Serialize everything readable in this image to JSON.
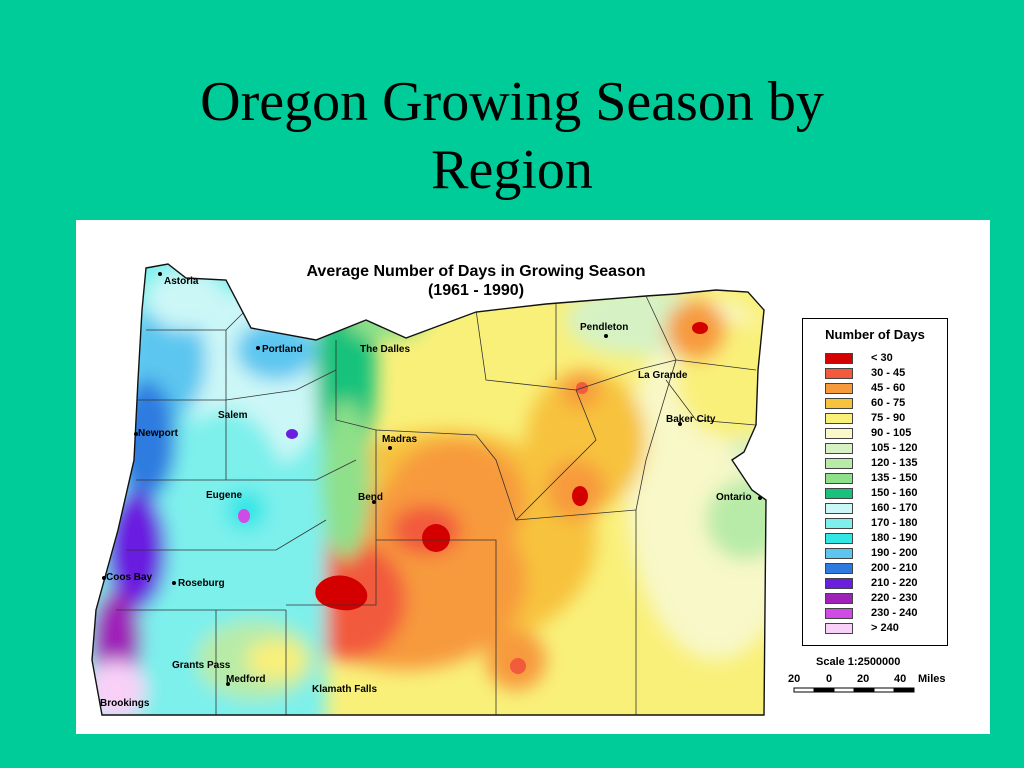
{
  "slide": {
    "title_line1": "Oregon Growing Season by",
    "title_line2": "Region",
    "background_color": "#00CC99"
  },
  "map": {
    "title_line1": "Average Number of Days in Growing Season",
    "title_line2": "(1961 - 1990)",
    "cities": [
      {
        "id": "astoria",
        "label": "Astoria"
      },
      {
        "id": "portland",
        "label": "Portland"
      },
      {
        "id": "the-dalles",
        "label": "The Dalles"
      },
      {
        "id": "pendleton",
        "label": "Pendleton"
      },
      {
        "id": "la-grande",
        "label": "La Grande"
      },
      {
        "id": "baker-city",
        "label": "Baker City"
      },
      {
        "id": "salem",
        "label": "Salem"
      },
      {
        "id": "newport",
        "label": "Newport"
      },
      {
        "id": "madras",
        "label": "Madras"
      },
      {
        "id": "eugene",
        "label": "Eugene"
      },
      {
        "id": "bend",
        "label": "Bend"
      },
      {
        "id": "ontario",
        "label": "Ontario"
      },
      {
        "id": "coos-bay",
        "label": "Coos Bay"
      },
      {
        "id": "roseburg",
        "label": "Roseburg"
      },
      {
        "id": "grants-pass",
        "label": "Grants Pass"
      },
      {
        "id": "medford",
        "label": "Medford"
      },
      {
        "id": "klamath-falls",
        "label": "Klamath Falls"
      },
      {
        "id": "brookings",
        "label": "Brookings"
      }
    ],
    "legend": {
      "title": "Number of Days",
      "items": [
        {
          "label": "< 30",
          "color": "#D40000"
        },
        {
          "label": "30 - 45",
          "color": "#F25A3C"
        },
        {
          "label": "45 - 60",
          "color": "#F79A3E"
        },
        {
          "label": "60 - 75",
          "color": "#F7C23C"
        },
        {
          "label": "75 - 90",
          "color": "#F9F07A"
        },
        {
          "label": "90 - 105",
          "color": "#F8F8C8"
        },
        {
          "label": "105 - 120",
          "color": "#D6F2C4"
        },
        {
          "label": "120 - 135",
          "color": "#B8EBA8"
        },
        {
          "label": "135 - 150",
          "color": "#8EE08A"
        },
        {
          "label": "150 - 160",
          "color": "#19C27C"
        },
        {
          "label": "160 - 170",
          "color": "#CCF7F7"
        },
        {
          "label": "170 - 180",
          "color": "#7DF0EC"
        },
        {
          "label": "180 - 190",
          "color": "#33E6E6"
        },
        {
          "label": "190 - 200",
          "color": "#5CC6F0"
        },
        {
          "label": "200 - 210",
          "color": "#2E7BE0"
        },
        {
          "label": "210 - 220",
          "color": "#6A1EE0"
        },
        {
          "label": "220 - 230",
          "color": "#9E22B8"
        },
        {
          "label": "230 - 240",
          "color": "#D04AE8"
        },
        {
          "label": "> 240",
          "color": "#F8D0F8"
        }
      ]
    },
    "scale": {
      "label": "Scale 1:2500000",
      "ticks": [
        "20",
        "0",
        "20",
        "40"
      ],
      "unit": "Miles"
    }
  }
}
